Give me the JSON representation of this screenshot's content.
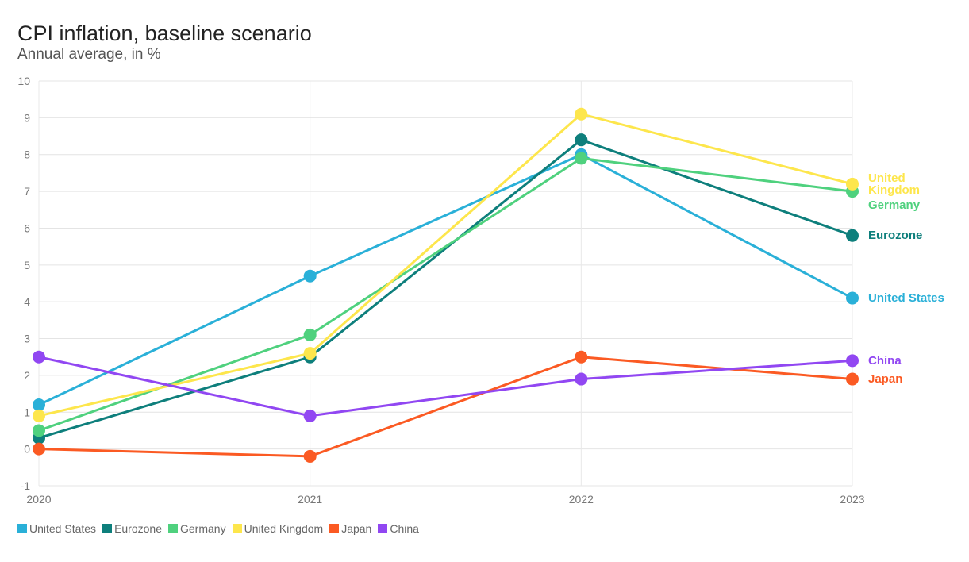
{
  "chart_data": {
    "type": "line",
    "title": "CPI inflation, baseline scenario",
    "subtitle": "Annual average, in %",
    "xlabel": "",
    "ylabel": "",
    "x": [
      "2020",
      "2021",
      "2022",
      "2023"
    ],
    "ylim": [
      -1,
      10
    ],
    "yticks": [
      -1,
      0,
      1,
      2,
      3,
      4,
      5,
      6,
      7,
      8,
      9,
      10
    ],
    "grid": true,
    "legend_position": "bottom-left",
    "series": [
      {
        "name": "United States",
        "color": "#2ab0d8",
        "values": [
          1.2,
          4.7,
          8.0,
          4.1
        ],
        "end_label": [
          "United States"
        ]
      },
      {
        "name": "Eurozone",
        "color": "#0e7f7c",
        "values": [
          0.3,
          2.5,
          8.4,
          5.8
        ],
        "end_label": [
          "Eurozone"
        ]
      },
      {
        "name": "Germany",
        "color": "#4fd17e",
        "values": [
          0.5,
          3.1,
          7.9,
          7.0
        ],
        "end_label": [
          "Germany"
        ]
      },
      {
        "name": "United Kingdom",
        "color": "#fde64c",
        "values": [
          0.9,
          2.6,
          9.1,
          7.2
        ],
        "end_label": [
          "United",
          "Kingdom"
        ]
      },
      {
        "name": "Japan",
        "color": "#fb5a23",
        "values": [
          0.0,
          -0.2,
          2.5,
          1.9
        ],
        "end_label": [
          "Japan"
        ]
      },
      {
        "name": "China",
        "color": "#9147f2",
        "values": [
          2.5,
          0.9,
          1.9,
          2.4
        ],
        "end_label": [
          "China"
        ]
      }
    ]
  }
}
